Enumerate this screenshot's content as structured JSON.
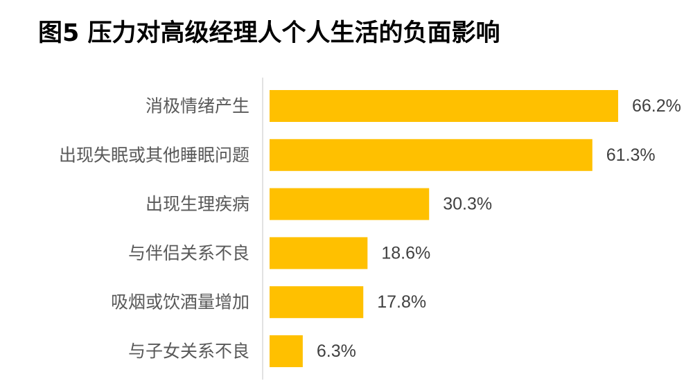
{
  "chart_data": {
    "type": "bar",
    "orientation": "horizontal",
    "title": "图5 压力对高级经理人个人生活的负面影响",
    "categories": [
      "消极情绪产生",
      "出现失眠或其他睡眠问题",
      "出现生理疾病",
      "与伴侣关系不良",
      "吸烟或饮酒量增加",
      "与子女关系不良"
    ],
    "values": [
      66.2,
      61.3,
      30.3,
      18.6,
      17.8,
      6.3
    ],
    "value_labels": [
      "66.2%",
      "61.3%",
      "30.3%",
      "18.6%",
      "17.8%",
      "6.3%"
    ],
    "xlim": [
      0,
      66.2
    ],
    "grid": false,
    "legend": "none",
    "bar_color": "#FFC000",
    "axis_color": "#D9D9D9"
  }
}
